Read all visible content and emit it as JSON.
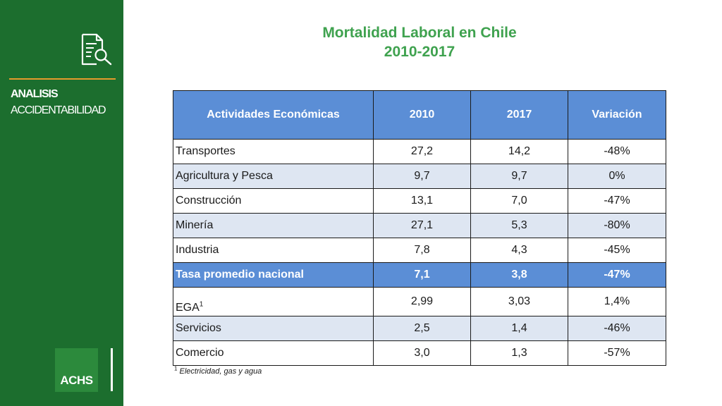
{
  "sidebar": {
    "section_title": "ANALISIS",
    "section_subtitle": "ACCIDENTABILIDAD",
    "icon": "document-search-icon",
    "logo_text": "ACHS"
  },
  "title": {
    "line1": "Mortalidad Laboral en Chile",
    "line2": "2010-2017"
  },
  "table": {
    "headers": [
      "Actividades Económicas",
      "2010",
      "2017",
      "Variación"
    ],
    "rows": [
      {
        "activity": "Transportes",
        "y2010": "27,2",
        "y2017": "14,2",
        "variation": "-48%"
      },
      {
        "activity": "Agricultura y Pesca",
        "y2010": "9,7",
        "y2017": "9,7",
        "variation": "0%"
      },
      {
        "activity": "Construcción",
        "y2010": "13,1",
        "y2017": "7,0",
        "variation": "-47%"
      },
      {
        "activity": "Minería",
        "y2010": "27,1",
        "y2017": "5,3",
        "variation": "-80%"
      },
      {
        "activity": "Industria",
        "y2010": "7,8",
        "y2017": "4,3",
        "variation": "-45%"
      },
      {
        "activity": "Tasa promedio nacional",
        "y2010": "7,1",
        "y2017": "3,8",
        "variation": "-47%"
      },
      {
        "activity": "EGA",
        "activity_sup": "1",
        "y2010": "2,99",
        "y2017": "3,03",
        "variation": "1,4%"
      },
      {
        "activity": "Servicios",
        "y2010": "2,5",
        "y2017": "1,4",
        "variation": "-46%"
      },
      {
        "activity": "Comercio",
        "y2010": "3,0",
        "y2017": "1,3",
        "variation": "-57%"
      }
    ]
  },
  "footnote": {
    "marker": "1",
    "text": "Electricidad, gas y agua"
  },
  "colors": {
    "sidebar_green": "#1c6e2e",
    "title_green": "#3fa24f",
    "header_blue": "#5b8ed6",
    "row_alt": "#dee6f2",
    "divider_orange": "#e59a2c"
  }
}
